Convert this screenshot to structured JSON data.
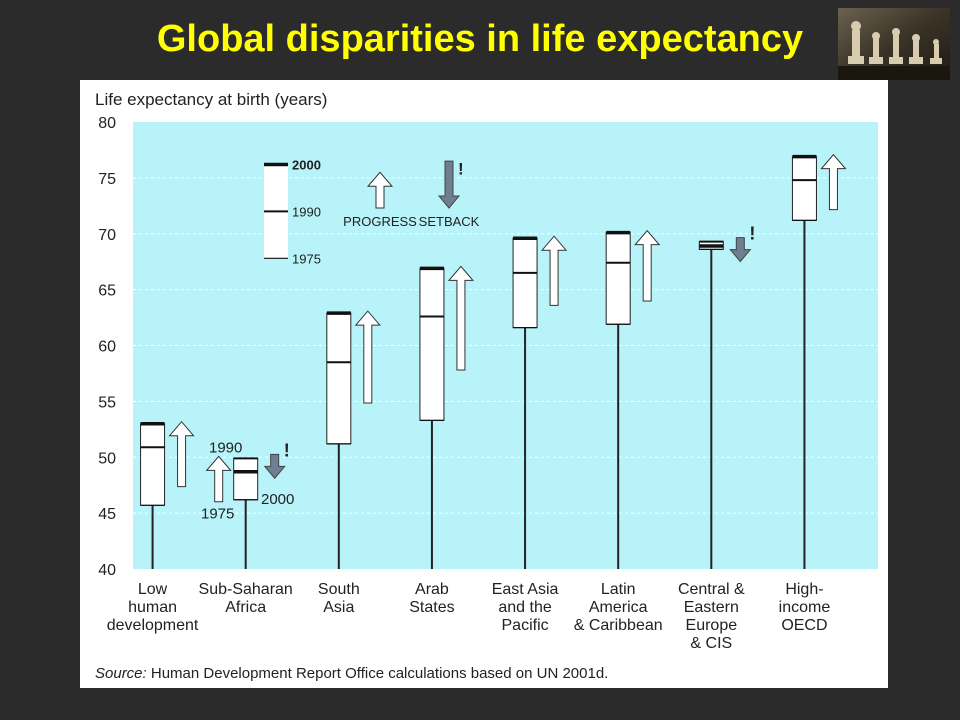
{
  "slide": {
    "title": "Global disparities in life expectancy"
  },
  "chart_data": {
    "type": "range",
    "ylabel": "Life expectancy at birth (years)",
    "ylim": [
      40,
      80
    ],
    "yticks": [
      40,
      45,
      50,
      55,
      60,
      65,
      70,
      75,
      80
    ],
    "grid": true,
    "categories": [
      {
        "label": [
          "Low",
          "human",
          "development"
        ],
        "y1975": 45.7,
        "y1990": 50.9,
        "y2000": 53.0,
        "trend": "progress"
      },
      {
        "label": [
          "Sub-Saharan",
          "Africa"
        ],
        "y1975": 46.2,
        "y1990": 49.9,
        "y2000": 48.7,
        "trend": "setback"
      },
      {
        "label": [
          "South",
          "Asia"
        ],
        "y1975": 51.2,
        "y1990": 58.5,
        "y2000": 62.9,
        "trend": "progress"
      },
      {
        "label": [
          "Arab",
          "States"
        ],
        "y1975": 53.3,
        "y1990": 62.6,
        "y2000": 66.9,
        "trend": "progress"
      },
      {
        "label": [
          "East Asia",
          "and the",
          "Pacific"
        ],
        "y1975": 61.6,
        "y1990": 66.5,
        "y2000": 69.6,
        "trend": "progress"
      },
      {
        "label": [
          "Latin",
          "America",
          "& Caribbean"
        ],
        "y1975": 61.9,
        "y1990": 67.4,
        "y2000": 70.1,
        "trend": "progress"
      },
      {
        "label": [
          "Central &",
          "Eastern",
          "Europe",
          "& CIS"
        ],
        "y1975": 68.6,
        "y1990": 69.3,
        "y2000": 68.9,
        "trend": "setback"
      },
      {
        "label": [
          "High-",
          "income",
          "OECD"
        ],
        "y1975": 71.2,
        "y1990": 74.8,
        "y2000": 76.9,
        "trend": "progress"
      }
    ],
    "key": {
      "year_2000": "2000",
      "year_1990": "1990",
      "year_1975": "1975",
      "progress": "PROGRESS",
      "setback": "SETBACK",
      "mark": "!"
    },
    "annotation": {
      "year_1990": "1990",
      "year_1975": "1975",
      "year_2000": "2000",
      "mark": "!"
    },
    "source_label": "Source:",
    "source_text": " Human Development Report Office calculations based on UN 2001d.",
    "colors": {
      "plot_bg": "#b7f3f8",
      "title": "#ffff00",
      "page_bg": "#2b2b2b",
      "setback": "#6d7f90"
    }
  }
}
